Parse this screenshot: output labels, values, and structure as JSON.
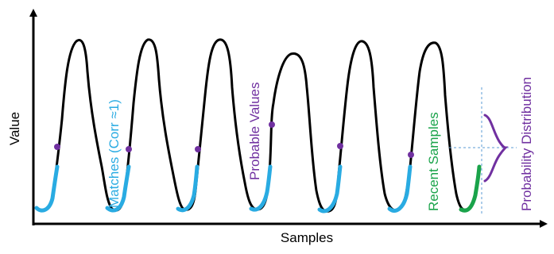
{
  "axes": {
    "x_label": "Samples",
    "y_label": "Value"
  },
  "annotations": {
    "matches": "Matches (Corr ≈1)",
    "probable_values": "Probable Values",
    "recent_samples": "Recent Samples",
    "probability_distribution": "Probability Distribution"
  },
  "colors": {
    "signal": "#000000",
    "matches": "#29abe2",
    "probable": "#7030a0",
    "recent": "#1aa34a",
    "guide": "#5b9bd5"
  }
}
